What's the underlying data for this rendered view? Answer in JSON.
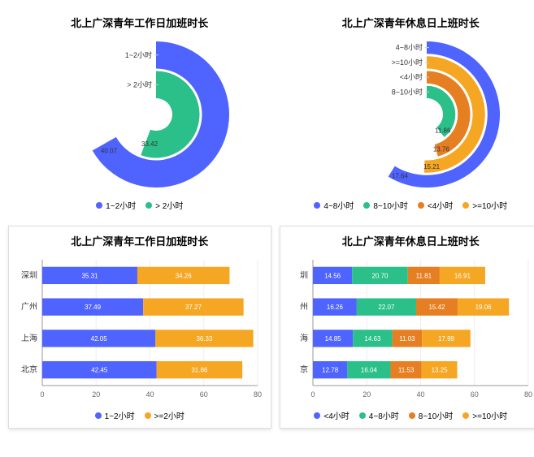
{
  "colors": {
    "blue": "#4f63ff",
    "green": "#2bbf8a",
    "orange": "#f5a623",
    "darkorange": "#e67e22"
  },
  "panel1": {
    "title": "北上广深青年工作日加班时长",
    "type": "radial-bar",
    "categories": [
      "1~2小时",
      "> 2小时"
    ],
    "values": [
      40.07,
      33.42
    ],
    "colors": [
      "#4f63ff",
      "#2bbf8a"
    ],
    "max": 50,
    "legend": [
      {
        "label": "1~2小时",
        "color": "#4f63ff"
      },
      {
        "label": "> 2小时",
        "color": "#2bbf8a"
      }
    ]
  },
  "panel2": {
    "title": "北上广深青年休息日上班时长",
    "type": "radial-bar",
    "categories": [
      "4~8小时",
      ">=10小时",
      "<4小时",
      "8~10小时"
    ],
    "values": [
      17.64,
      15.21,
      13.76,
      11.86
    ],
    "colors": [
      "#4f63ff",
      "#f5a623",
      "#e67e22",
      "#2bbf8a"
    ],
    "max": 25,
    "legend": [
      {
        "label": "4~8小时",
        "color": "#4f63ff"
      },
      {
        "label": "8~10小时",
        "color": "#2bbf8a"
      },
      {
        "label": "<4小时",
        "color": "#e67e22"
      },
      {
        "label": ">=10小时",
        "color": "#f5a623"
      }
    ]
  },
  "panel3": {
    "title": "北上广深青年工作日加班时长",
    "type": "stacked-bar",
    "categories": [
      "深圳",
      "广州",
      "上海",
      "北京"
    ],
    "series": [
      {
        "name": "1~2小时",
        "color": "#4f63ff",
        "values": [
          35.31,
          37.49,
          42.05,
          42.45
        ]
      },
      {
        "name": ">=2小时",
        "color": "#f5a623",
        "values": [
          34.26,
          37.27,
          36.33,
          31.86
        ]
      }
    ],
    "xmax": 80,
    "xtick": 20,
    "legend": [
      {
        "label": "1~2小时",
        "color": "#4f63ff"
      },
      {
        "label": ">=2小时",
        "color": "#f5a623"
      }
    ]
  },
  "panel4": {
    "title": "北上广深青年休息日上班时长",
    "type": "stacked-bar",
    "categories": [
      "圳",
      "州",
      "海",
      "京"
    ],
    "series": [
      {
        "name": "<4小时",
        "color": "#4f63ff",
        "values": [
          14.56,
          16.26,
          14.85,
          12.78
        ]
      },
      {
        "name": "4~8小时",
        "color": "#2bbf8a",
        "values": [
          20.7,
          22.07,
          14.63,
          16.04
        ]
      },
      {
        "name": "8~10小时",
        "color": "#e67e22",
        "values": [
          11.81,
          15.42,
          11.03,
          11.53
        ]
      },
      {
        "name": ">=10小时",
        "color": "#f5a623",
        "values": [
          16.91,
          19.06,
          17.99,
          13.25
        ]
      }
    ],
    "xmax": 80,
    "xtick": 20,
    "legend": [
      {
        "label": "<4小时",
        "color": "#4f63ff"
      },
      {
        "label": "4~8小时",
        "color": "#2bbf8a"
      },
      {
        "label": "8~10小时",
        "color": "#e67e22"
      },
      {
        "label": ">=10小时",
        "color": "#f5a623"
      }
    ]
  }
}
